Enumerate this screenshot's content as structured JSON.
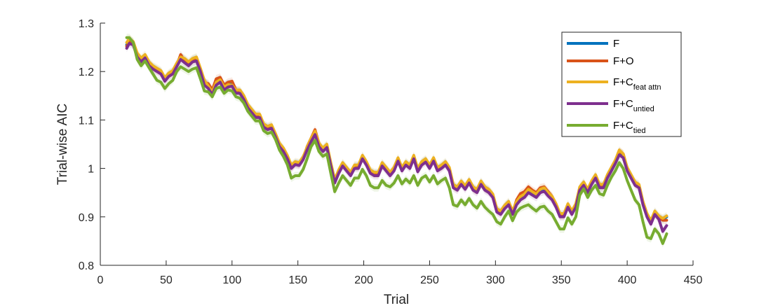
{
  "chart_data": {
    "type": "line",
    "xlabel": "Trial",
    "ylabel": "Trial-wise AIC",
    "xlim": [
      0,
      450
    ],
    "ylim": [
      0.8,
      1.3
    ],
    "xticks": [
      0,
      50,
      100,
      150,
      200,
      250,
      300,
      350,
      400,
      450
    ],
    "xtick_labels": [
      "0",
      "50",
      "100",
      "150",
      "200",
      "250",
      "300",
      "350",
      "400",
      "450"
    ],
    "yticks": [
      0.8,
      0.9,
      1.0,
      1.1,
      1.2,
      1.3
    ],
    "ytick_labels": [
      "0.8",
      "0.9",
      "1",
      "1.1",
      "1.2",
      "1.3"
    ],
    "grid": false,
    "legend_position": "top-right",
    "x": [
      20,
      22,
      25,
      28,
      31,
      34,
      37,
      40,
      43,
      46,
      49,
      52,
      55,
      58,
      61,
      64,
      67,
      70,
      73,
      76,
      79,
      82,
      85,
      88,
      91,
      94,
      97,
      100,
      103,
      106,
      109,
      112,
      115,
      118,
      121,
      124,
      127,
      130,
      133,
      136,
      139,
      142,
      145,
      148,
      151,
      154,
      157,
      160,
      163,
      166,
      169,
      172,
      175,
      178,
      181,
      184,
      187,
      190,
      193,
      196,
      199,
      202,
      205,
      208,
      211,
      214,
      217,
      220,
      223,
      226,
      229,
      232,
      235,
      238,
      241,
      244,
      247,
      250,
      253,
      256,
      259,
      262,
      265,
      268,
      271,
      274,
      277,
      280,
      283,
      286,
      289,
      292,
      295,
      298,
      301,
      304,
      307,
      310,
      313,
      316,
      319,
      322,
      325,
      328,
      331,
      334,
      337,
      340,
      343,
      346,
      349,
      352,
      355,
      358,
      361,
      364,
      367,
      370,
      373,
      376,
      379,
      382,
      385,
      388,
      391,
      394,
      397,
      400,
      403,
      406,
      409,
      412,
      415,
      418,
      421,
      424,
      427,
      430
    ],
    "series": [
      {
        "name": "F",
        "color": "#0072BD",
        "values": [
          1.255,
          1.265,
          1.26,
          1.235,
          1.225,
          1.232,
          1.218,
          1.21,
          1.205,
          1.2,
          1.185,
          1.195,
          1.2,
          1.215,
          1.232,
          1.225,
          1.218,
          1.225,
          1.228,
          1.205,
          1.18,
          1.172,
          1.16,
          1.18,
          1.185,
          1.17,
          1.175,
          1.175,
          1.16,
          1.16,
          1.148,
          1.13,
          1.12,
          1.11,
          1.11,
          1.09,
          1.085,
          1.088,
          1.07,
          1.05,
          1.04,
          1.025,
          1.005,
          1.012,
          1.01,
          1.022,
          1.042,
          1.06,
          1.075,
          1.05,
          1.04,
          1.048,
          1.01,
          0.975,
          0.995,
          1.01,
          1.0,
          0.99,
          1.005,
          1.005,
          1.025,
          1.012,
          0.995,
          0.99,
          0.99,
          1.01,
          1.0,
          0.99,
          1.0,
          1.02,
          1.0,
          1.012,
          1.005,
          1.025,
          0.998,
          1.012,
          1.018,
          1.005,
          1.02,
          1.0,
          1.005,
          1.012,
          1.0,
          0.965,
          0.96,
          0.972,
          0.962,
          0.975,
          0.96,
          0.955,
          0.972,
          0.96,
          0.955,
          0.945,
          0.915,
          0.91,
          0.922,
          0.93,
          0.91,
          0.93,
          0.94,
          0.945,
          0.955,
          0.95,
          0.945,
          0.955,
          0.958,
          0.948,
          0.94,
          0.925,
          0.905,
          0.905,
          0.925,
          0.91,
          0.925,
          0.96,
          0.97,
          0.955,
          0.972,
          0.985,
          0.965,
          0.965,
          0.985,
          1.0,
          1.015,
          1.035,
          1.028,
          1.0,
          0.985,
          0.97,
          0.965,
          0.93,
          0.905,
          0.89,
          0.91,
          0.9,
          0.895,
          0.9
        ]
      },
      {
        "name": "F+O",
        "color": "#D95319",
        "values": [
          1.252,
          1.262,
          1.258,
          1.232,
          1.222,
          1.23,
          1.215,
          1.208,
          1.202,
          1.198,
          1.182,
          1.192,
          1.198,
          1.212,
          1.235,
          1.222,
          1.215,
          1.222,
          1.225,
          1.202,
          1.178,
          1.175,
          1.162,
          1.185,
          1.188,
          1.172,
          1.178,
          1.18,
          1.162,
          1.158,
          1.145,
          1.128,
          1.118,
          1.108,
          1.108,
          1.088,
          1.082,
          1.086,
          1.068,
          1.048,
          1.038,
          1.022,
          1.002,
          1.01,
          1.008,
          1.02,
          1.045,
          1.062,
          1.08,
          1.052,
          1.038,
          1.046,
          1.008,
          0.973,
          0.993,
          1.008,
          0.998,
          0.988,
          1.003,
          1.003,
          1.023,
          1.01,
          0.993,
          0.988,
          0.988,
          1.008,
          0.998,
          0.988,
          0.998,
          1.018,
          0.998,
          1.01,
          1.003,
          1.023,
          0.996,
          1.01,
          1.016,
          1.003,
          1.018,
          0.998,
          1.003,
          1.01,
          0.998,
          0.963,
          0.958,
          0.97,
          0.96,
          0.973,
          0.958,
          0.953,
          0.97,
          0.958,
          0.953,
          0.943,
          0.913,
          0.908,
          0.92,
          0.928,
          0.908,
          0.935,
          0.948,
          0.952,
          0.962,
          0.955,
          0.95,
          0.96,
          0.962,
          0.952,
          0.942,
          0.922,
          0.902,
          0.902,
          0.922,
          0.908,
          0.922,
          0.958,
          0.968,
          0.953,
          0.97,
          0.983,
          0.963,
          0.963,
          0.983,
          0.998,
          1.013,
          1.035,
          1.03,
          1.0,
          0.983,
          0.968,
          0.963,
          0.928,
          0.903,
          0.888,
          0.908,
          0.898,
          0.893,
          0.893
        ]
      },
      {
        "name": "F+Cfeat attn",
        "color": "#EDB120",
        "values": [
          1.26,
          1.268,
          1.262,
          1.238,
          1.228,
          1.235,
          1.22,
          1.212,
          1.207,
          1.202,
          1.187,
          1.197,
          1.202,
          1.217,
          1.23,
          1.227,
          1.22,
          1.227,
          1.23,
          1.207,
          1.182,
          1.17,
          1.158,
          1.178,
          1.183,
          1.168,
          1.173,
          1.172,
          1.162,
          1.162,
          1.15,
          1.132,
          1.122,
          1.112,
          1.112,
          1.092,
          1.087,
          1.09,
          1.072,
          1.052,
          1.042,
          1.027,
          1.007,
          1.014,
          1.012,
          1.024,
          1.044,
          1.062,
          1.077,
          1.052,
          1.042,
          1.05,
          1.012,
          0.977,
          0.997,
          1.012,
          1.002,
          0.992,
          1.007,
          1.007,
          1.027,
          1.014,
          0.997,
          0.992,
          0.992,
          1.012,
          1.002,
          0.992,
          1.002,
          1.022,
          1.002,
          1.014,
          1.007,
          1.027,
          1.0,
          1.014,
          1.02,
          1.007,
          1.022,
          1.002,
          1.007,
          1.014,
          1.002,
          0.967,
          0.962,
          0.974,
          0.964,
          0.977,
          0.962,
          0.957,
          0.974,
          0.962,
          0.957,
          0.947,
          0.917,
          0.912,
          0.924,
          0.932,
          0.912,
          0.932,
          0.942,
          0.947,
          0.957,
          0.952,
          0.947,
          0.957,
          0.96,
          0.95,
          0.942,
          0.927,
          0.907,
          0.907,
          0.927,
          0.912,
          0.927,
          0.962,
          0.972,
          0.957,
          0.974,
          0.987,
          0.967,
          0.967,
          0.987,
          1.002,
          1.017,
          1.038,
          1.03,
          1.002,
          0.987,
          0.972,
          0.967,
          0.932,
          0.907,
          0.892,
          0.912,
          0.902,
          0.897,
          0.902
        ]
      },
      {
        "name": "F+Cuntied",
        "color": "#7E2F8E",
        "values": [
          1.248,
          1.258,
          1.255,
          1.23,
          1.22,
          1.228,
          1.212,
          1.205,
          1.2,
          1.195,
          1.18,
          1.19,
          1.195,
          1.21,
          1.225,
          1.218,
          1.212,
          1.22,
          1.222,
          1.2,
          1.172,
          1.165,
          1.152,
          1.172,
          1.178,
          1.162,
          1.168,
          1.17,
          1.155,
          1.155,
          1.142,
          1.125,
          1.115,
          1.105,
          1.105,
          1.085,
          1.08,
          1.083,
          1.065,
          1.045,
          1.035,
          1.02,
          1.0,
          1.008,
          1.006,
          1.018,
          1.038,
          1.055,
          1.07,
          1.045,
          1.035,
          1.043,
          1.005,
          0.97,
          0.99,
          1.005,
          0.995,
          0.985,
          1.0,
          1.0,
          1.02,
          1.007,
          0.99,
          0.985,
          0.985,
          1.005,
          0.995,
          0.985,
          0.995,
          1.015,
          0.995,
          1.007,
          1.0,
          1.02,
          0.993,
          1.007,
          1.013,
          1.0,
          1.015,
          0.995,
          1.0,
          1.007,
          0.995,
          0.96,
          0.955,
          0.967,
          0.957,
          0.97,
          0.955,
          0.95,
          0.967,
          0.955,
          0.95,
          0.94,
          0.91,
          0.905,
          0.917,
          0.925,
          0.905,
          0.925,
          0.935,
          0.94,
          0.95,
          0.945,
          0.94,
          0.95,
          0.953,
          0.943,
          0.935,
          0.92,
          0.9,
          0.9,
          0.92,
          0.905,
          0.92,
          0.955,
          0.965,
          0.95,
          0.967,
          0.98,
          0.96,
          0.96,
          0.98,
          0.995,
          1.01,
          1.028,
          1.022,
          0.995,
          0.98,
          0.965,
          0.96,
          0.925,
          0.9,
          0.885,
          0.905,
          0.895,
          0.87,
          0.882
        ]
      },
      {
        "name": "F+Ctied",
        "color": "#77AC30",
        "values": [
          1.27,
          1.27,
          1.26,
          1.225,
          1.212,
          1.222,
          1.208,
          1.195,
          1.182,
          1.178,
          1.165,
          1.175,
          1.182,
          1.2,
          1.21,
          1.205,
          1.2,
          1.205,
          1.208,
          1.185,
          1.16,
          1.158,
          1.148,
          1.165,
          1.168,
          1.155,
          1.162,
          1.16,
          1.148,
          1.145,
          1.135,
          1.118,
          1.108,
          1.098,
          1.098,
          1.078,
          1.072,
          1.075,
          1.06,
          1.038,
          1.025,
          1.008,
          0.98,
          0.985,
          0.985,
          0.998,
          1.02,
          1.045,
          1.058,
          1.035,
          1.025,
          1.03,
          0.99,
          0.952,
          0.97,
          0.985,
          0.975,
          0.965,
          0.98,
          0.98,
          0.998,
          0.985,
          0.965,
          0.96,
          0.96,
          0.975,
          0.965,
          0.962,
          0.97,
          0.985,
          0.968,
          0.978,
          0.97,
          0.985,
          0.965,
          0.98,
          0.985,
          0.972,
          0.985,
          0.968,
          0.975,
          0.98,
          0.96,
          0.925,
          0.922,
          0.935,
          0.925,
          0.938,
          0.925,
          0.918,
          0.932,
          0.92,
          0.912,
          0.905,
          0.89,
          0.885,
          0.9,
          0.912,
          0.892,
          0.91,
          0.918,
          0.922,
          0.925,
          0.918,
          0.912,
          0.92,
          0.922,
          0.912,
          0.905,
          0.89,
          0.875,
          0.875,
          0.898,
          0.885,
          0.9,
          0.945,
          0.958,
          0.94,
          0.955,
          0.965,
          0.948,
          0.945,
          0.965,
          0.982,
          0.995,
          1.012,
          1.0,
          0.975,
          0.955,
          0.935,
          0.925,
          0.89,
          0.858,
          0.855,
          0.875,
          0.865,
          0.845,
          0.865
        ]
      }
    ],
    "legend": [
      {
        "main": "F",
        "sub": ""
      },
      {
        "main": "F+O",
        "sub": ""
      },
      {
        "main": "F+C",
        "sub": "feat attn"
      },
      {
        "main": "F+C",
        "sub": "untied"
      },
      {
        "main": "F+C",
        "sub": "tied"
      }
    ]
  }
}
